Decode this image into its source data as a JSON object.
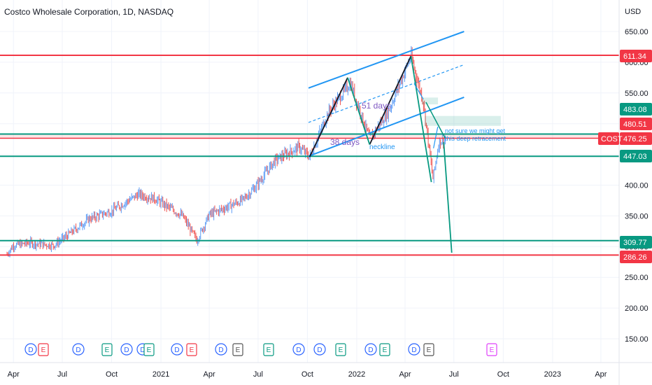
{
  "title": "Costco Wholesale Corporation, 1D, NASDAQ",
  "currency": "USD",
  "symbol_tag": "COST",
  "colors": {
    "red": "#f23645",
    "green": "#089981",
    "blue": "#2196f3",
    "black": "#131722",
    "candle_up": "#5b9cf6",
    "candle_down": "#ef5350",
    "purple": "#7e57c2",
    "event_blue": "#2962ff",
    "event_red": "#f23645",
    "event_green": "#089981",
    "event_gray": "#555555",
    "event_magenta": "#e040fb"
  },
  "chart_data": {
    "type": "candlestick",
    "ylim": [
      120,
      680
    ],
    "y_ticks": [
      "650.00",
      "600.00",
      "550.00",
      "500.00",
      "450.00",
      "400.00",
      "350.00",
      "300.00",
      "250.00",
      "200.00",
      "150.00"
    ],
    "x_labels": [
      "Apr",
      "Jul",
      "Oct",
      "2021",
      "Apr",
      "Jul",
      "Oct",
      "2022",
      "Apr",
      "Jul",
      "Oct",
      "2023",
      "Apr"
    ],
    "price_anchors": [
      [
        "2020-03-20",
        288
      ],
      [
        "2020-04-01",
        302
      ],
      [
        "2020-05-01",
        306
      ],
      [
        "2020-06-15",
        302
      ],
      [
        "2020-07-10",
        318
      ],
      [
        "2020-08-20",
        345
      ],
      [
        "2020-10-01",
        358
      ],
      [
        "2020-11-20",
        385
      ],
      [
        "2020-12-20",
        378
      ],
      [
        "2021-02-10",
        350
      ],
      [
        "2021-03-09",
        310
      ],
      [
        "2021-04-01",
        352
      ],
      [
        "2021-06-01",
        375
      ],
      [
        "2021-06-25",
        396
      ],
      [
        "2021-08-01",
        440
      ],
      [
        "2021-09-15",
        462
      ],
      [
        "2021-10-05",
        446
      ],
      [
        "2021-11-10",
        520
      ],
      [
        "2021-12-20",
        566
      ],
      [
        "2022-01-25",
        475
      ],
      [
        "2022-03-01",
        520
      ],
      [
        "2022-04-12",
        610
      ],
      [
        "2022-05-05",
        535
      ],
      [
        "2022-05-23",
        410
      ],
      [
        "2022-06-03",
        470
      ],
      [
        "2022-06-15",
        476
      ]
    ],
    "horizontal_levels": [
      {
        "price": 611.34,
        "label": "611.34",
        "color": "red"
      },
      {
        "price": 483.08,
        "label": "483.08",
        "color": "green"
      },
      {
        "price": 480.51,
        "label": "480.51",
        "color": "red"
      },
      {
        "price": 476.25,
        "label": "476.25",
        "color": "red"
      },
      {
        "price": 447.03,
        "label": "447.03",
        "color": "green"
      },
      {
        "price": 309.77,
        "label": "309.77",
        "color": "green"
      },
      {
        "price": 286.26,
        "label": "286.26",
        "color": "red"
      }
    ],
    "annotations": {
      "days_38": "38 days",
      "days_51": "51 days",
      "neckline": "neckline",
      "note_line1": "not sure we might get",
      "note_line2": "this deep retracement"
    },
    "events": [
      "D",
      "E",
      "D",
      "E",
      "D",
      "D",
      "E",
      "D",
      "E",
      "D",
      "E",
      "E",
      "D",
      "D",
      "E",
      "D",
      "E",
      "D",
      "E",
      "E"
    ]
  }
}
